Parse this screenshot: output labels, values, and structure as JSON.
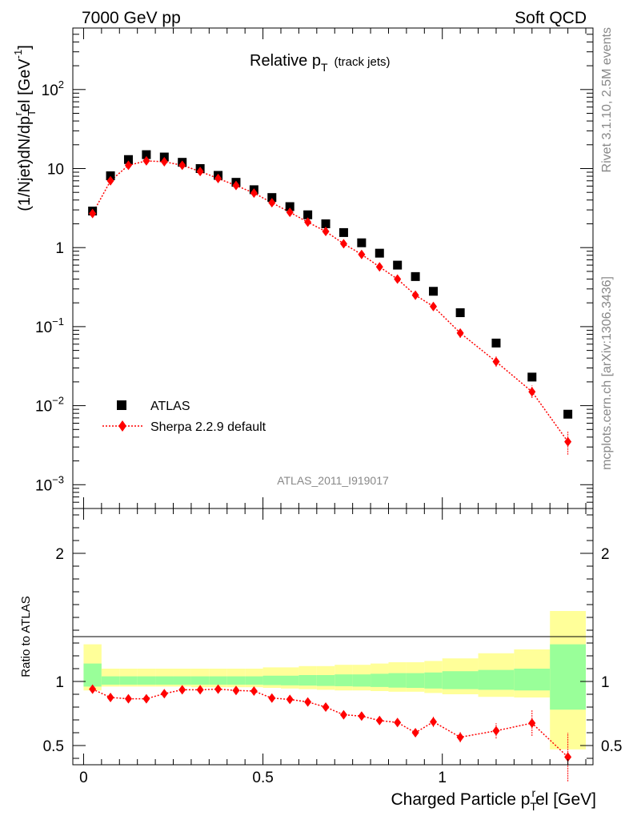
{
  "header": {
    "left": "7000 GeV pp",
    "right": "Soft QCD"
  },
  "side": {
    "top": "Rivet 3.1.10,  2.5M events",
    "bottom": "mcplots.cern.ch [arXiv:1306.3436]"
  },
  "watermark": "ATLAS_2011_I919017",
  "labels": {
    "title_main": "Relative p",
    "title_sub": "T",
    "title_note": "(track jets)",
    "ylabel_main": "(1/Njet)dN/dp",
    "ylabel_sub": "T",
    "ylabel_sup": "r",
    "ylabel_rest": "el [GeV",
    "ylabel_sup2": "-1",
    "ylabel_close": "]",
    "ratio_ylabel": "Ratio to ATLAS",
    "xlabel_main": "Charged Particle p",
    "xlabel_sub": "T",
    "xlabel_sup": "r",
    "xlabel_rest": "el [GeV]"
  },
  "colors": {
    "data": "#000000",
    "mc": "#ff0000",
    "band_inner": "#99ff99",
    "band_outer": "#ffff99"
  },
  "chart_data": [
    {
      "type": "scatter",
      "scale": "log",
      "ylim": [
        0.0005,
        600
      ],
      "xlim": [
        -0.03,
        1.42
      ],
      "legend_position": "bottom-left",
      "yticks": [
        {
          "value": 0.001,
          "base": "10",
          "exp": "−3"
        },
        {
          "value": 0.01,
          "base": "10",
          "exp": "−2"
        },
        {
          "value": 0.1,
          "base": "10",
          "exp": "−1"
        },
        {
          "value": 1,
          "base": "1",
          "exp": ""
        },
        {
          "value": 10,
          "base": "10",
          "exp": ""
        },
        {
          "value": 100,
          "base": "10",
          "exp": "2"
        }
      ],
      "x": [
        0.025,
        0.075,
        0.125,
        0.175,
        0.225,
        0.275,
        0.325,
        0.375,
        0.425,
        0.475,
        0.525,
        0.575,
        0.625,
        0.675,
        0.725,
        0.775,
        0.825,
        0.875,
        0.925,
        0.975,
        1.05,
        1.15,
        1.25,
        1.35
      ],
      "series": [
        {
          "name": "ATLAS",
          "marker": "square",
          "values": [
            2.9,
            8.1,
            13.0,
            15.0,
            14.0,
            12.0,
            10.0,
            8.2,
            6.7,
            5.4,
            4.3,
            3.3,
            2.6,
            2.0,
            1.55,
            1.15,
            0.85,
            0.6,
            0.43,
            0.28,
            0.15,
            0.062,
            0.023,
            0.0078
          ]
        },
        {
          "name": "Sherpa 2.2.9 default",
          "marker": "diamond",
          "values": [
            2.7,
            7.0,
            11.0,
            12.5,
            12.2,
            11.0,
            9.2,
            7.5,
            6.1,
            4.9,
            3.7,
            2.8,
            2.1,
            1.6,
            1.12,
            0.82,
            0.57,
            0.4,
            0.25,
            0.18,
            0.083,
            0.036,
            0.015,
            0.0035
          ],
          "err_lo": [
            2.5,
            6.6,
            10.4,
            11.9,
            11.6,
            10.5,
            8.8,
            7.2,
            5.8,
            4.7,
            3.55,
            2.68,
            2.0,
            1.52,
            1.05,
            0.76,
            0.52,
            0.36,
            0.22,
            0.16,
            0.072,
            0.031,
            0.0125,
            0.0024
          ],
          "err_hi": [
            2.9,
            7.4,
            11.6,
            13.1,
            12.8,
            11.5,
            9.6,
            7.8,
            6.4,
            5.1,
            3.85,
            2.92,
            2.2,
            1.68,
            1.2,
            0.88,
            0.62,
            0.44,
            0.28,
            0.2,
            0.095,
            0.042,
            0.018,
            0.0047
          ]
        }
      ]
    },
    {
      "type": "scatter",
      "ylabel": "Ratio to ATLAS",
      "ylim": [
        0.35,
        2.35
      ],
      "yticks": [
        0.5,
        1,
        2
      ],
      "xlim": [
        -0.03,
        1.42
      ],
      "xticks": [
        0,
        0.5,
        1
      ],
      "xlabel": "Charged Particle pTrel [GeV]",
      "bins": [
        [
          0,
          0.05
        ],
        [
          0.05,
          0.1
        ],
        [
          0.1,
          0.15
        ],
        [
          0.15,
          0.2
        ],
        [
          0.2,
          0.25
        ],
        [
          0.25,
          0.3
        ],
        [
          0.3,
          0.35
        ],
        [
          0.35,
          0.4
        ],
        [
          0.4,
          0.45
        ],
        [
          0.45,
          0.5
        ],
        [
          0.5,
          0.55
        ],
        [
          0.55,
          0.6
        ],
        [
          0.6,
          0.65
        ],
        [
          0.65,
          0.7
        ],
        [
          0.7,
          0.75
        ],
        [
          0.75,
          0.8
        ],
        [
          0.8,
          0.85
        ],
        [
          0.85,
          0.9
        ],
        [
          0.9,
          0.95
        ],
        [
          0.95,
          1.0
        ],
        [
          1.0,
          1.1
        ],
        [
          1.1,
          1.2
        ],
        [
          1.2,
          1.3
        ],
        [
          1.3,
          1.4
        ]
      ],
      "band_inner_lo": [
        0.96,
        0.975,
        0.975,
        0.975,
        0.975,
        0.975,
        0.975,
        0.975,
        0.975,
        0.975,
        0.972,
        0.97,
        0.968,
        0.965,
        0.963,
        0.96,
        0.957,
        0.952,
        0.95,
        0.945,
        0.94,
        0.935,
        0.93,
        0.78
      ],
      "band_inner_hi": [
        1.14,
        1.04,
        1.04,
        1.04,
        1.04,
        1.04,
        1.04,
        1.04,
        1.04,
        1.04,
        1.045,
        1.045,
        1.05,
        1.05,
        1.055,
        1.055,
        1.06,
        1.065,
        1.065,
        1.07,
        1.08,
        1.09,
        1.1,
        1.29
      ],
      "band_outer_lo": [
        0.93,
        0.96,
        0.96,
        0.96,
        0.96,
        0.96,
        0.955,
        0.955,
        0.955,
        0.955,
        0.95,
        0.945,
        0.94,
        0.935,
        0.93,
        0.93,
        0.925,
        0.92,
        0.92,
        0.91,
        0.9,
        0.88,
        0.875,
        0.47
      ],
      "band_outer_hi": [
        1.29,
        1.1,
        1.1,
        1.1,
        1.1,
        1.1,
        1.1,
        1.1,
        1.1,
        1.1,
        1.11,
        1.11,
        1.12,
        1.12,
        1.13,
        1.13,
        1.14,
        1.15,
        1.15,
        1.16,
        1.18,
        1.22,
        1.25,
        1.55
      ],
      "series": [
        {
          "name": "Sherpa 2.2.9 default",
          "values": [
            0.94,
            0.875,
            0.865,
            0.865,
            0.905,
            0.935,
            0.935,
            0.94,
            0.93,
            0.925,
            0.87,
            0.86,
            0.84,
            0.8,
            0.74,
            0.73,
            0.695,
            0.68,
            0.6,
            0.685,
            0.565,
            0.615,
            0.675,
            0.41
          ],
          "err": [
            0.015,
            0.01,
            0.01,
            0.01,
            0.01,
            0.01,
            0.01,
            0.01,
            0.01,
            0.01,
            0.01,
            0.01,
            0.012,
            0.015,
            0.015,
            0.02,
            0.02,
            0.025,
            0.03,
            0.04,
            0.04,
            0.06,
            0.1,
            0.19
          ]
        }
      ]
    }
  ]
}
